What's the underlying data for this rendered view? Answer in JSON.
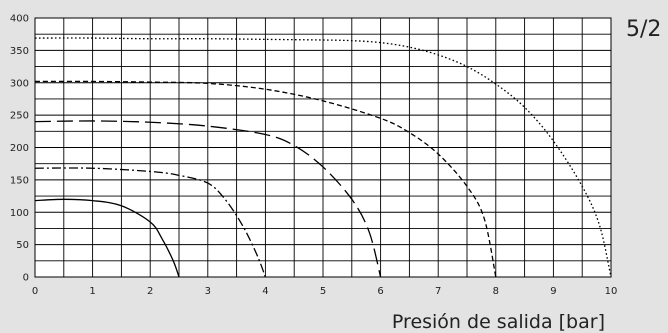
{
  "badge": "5/2",
  "chart_data": {
    "type": "line",
    "xlabel": "Presión de salida [bar]",
    "ylabel": "",
    "xlim": [
      0,
      10
    ],
    "ylim": [
      0,
      400
    ],
    "xticks": [
      0,
      1,
      2,
      3,
      4,
      5,
      6,
      7,
      8,
      9,
      10
    ],
    "yticks": [
      0,
      50,
      100,
      150,
      200,
      250,
      300,
      350,
      400
    ],
    "grid": true,
    "colors": {
      "line": "#000000",
      "grid": "#000000",
      "background": "#ffffff",
      "page": "#e3e3e3"
    },
    "series": [
      {
        "style": "solid",
        "x": [
          0,
          0.5,
          1,
          1.5,
          2,
          2.2,
          2.4,
          2.5
        ],
        "y": [
          118,
          120,
          118,
          110,
          85,
          60,
          25,
          0
        ]
      },
      {
        "style": "dash-dot",
        "x": [
          0,
          1,
          2,
          2.5,
          3,
          3.3,
          3.6,
          3.85,
          4.0
        ],
        "y": [
          168,
          168,
          163,
          157,
          145,
          120,
          80,
          35,
          0
        ]
      },
      {
        "style": "long-dash",
        "x": [
          0,
          1,
          2,
          3,
          4,
          4.5,
          5,
          5.5,
          5.8,
          6.0
        ],
        "y": [
          240,
          241,
          239,
          233,
          220,
          203,
          170,
          120,
          70,
          0
        ]
      },
      {
        "style": "short-dash",
        "x": [
          0,
          1,
          2,
          3,
          4,
          5,
          6,
          6.5,
          7,
          7.5,
          7.8,
          8.0
        ],
        "y": [
          302,
          302,
          301,
          299,
          290,
          272,
          245,
          223,
          190,
          140,
          90,
          0
        ]
      },
      {
        "style": "dotted",
        "x": [
          0,
          1,
          2,
          3,
          4,
          5,
          5.5,
          6,
          6.5,
          7,
          7.5,
          8,
          8.5,
          9,
          9.5,
          9.8,
          10
        ],
        "y": [
          369,
          369,
          368,
          368,
          367,
          366,
          365,
          362,
          355,
          343,
          325,
          298,
          262,
          210,
          140,
          80,
          0
        ]
      }
    ]
  }
}
